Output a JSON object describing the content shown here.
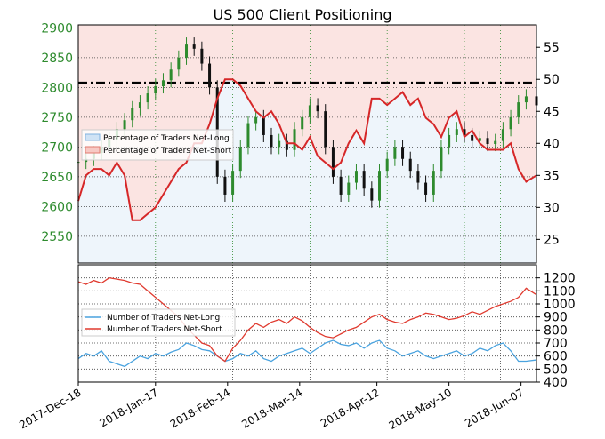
{
  "chart_data": [
    {
      "type": "line",
      "panel": "price-and-percentage",
      "title": "US 500 Client Positioning",
      "price_axis": {
        "ylim": [
          2505,
          2905
        ],
        "ticks": [
          2550,
          2600,
          2650,
          2700,
          2750,
          2800,
          2850,
          2900
        ],
        "color": "#2e8b2e"
      },
      "percent_axis": {
        "ylim": [
          21.3,
          58.5
        ],
        "ticks": [
          25,
          30,
          35,
          40,
          45,
          50,
          55
        ]
      },
      "reference_line": {
        "value": 2808,
        "style": "dash-dot"
      },
      "grid": true,
      "legend": {
        "placement": "center-left",
        "entries": [
          "Percentage of Traders Net-Long",
          "Percentage of Traders Net-Short"
        ]
      },
      "series": [
        {
          "name": "Percentage of Traders Net-Short",
          "color": "#d62728",
          "x": [
            0,
            3,
            6,
            9,
            12,
            15,
            18,
            21,
            24,
            27,
            30,
            33,
            36,
            39,
            42,
            45,
            48,
            51,
            54,
            57,
            60,
            63,
            66,
            69,
            72,
            75,
            78,
            81,
            84,
            87,
            90,
            93,
            96,
            99,
            102,
            105,
            108,
            111,
            114,
            117,
            120,
            123,
            126,
            129,
            132,
            135,
            138,
            141,
            144,
            147,
            150,
            153,
            156,
            159,
            162,
            165,
            168,
            171,
            174,
            178
          ],
          "values": [
            31,
            35,
            36,
            36,
            35,
            37,
            35,
            28,
            28,
            29,
            30,
            32,
            34,
            36,
            37,
            40,
            40,
            43,
            47,
            50,
            50,
            49,
            47,
            45,
            44,
            45,
            43,
            40,
            40,
            39,
            41,
            38,
            37,
            36,
            37,
            40,
            42,
            40,
            47,
            47,
            46,
            47,
            48,
            46,
            47,
            44,
            43,
            41,
            44,
            45,
            41,
            42,
            40,
            39,
            39,
            39,
            40,
            36,
            34,
            35
          ]
        },
        {
          "name": "Percentage of Traders Net-Long",
          "values_note": "100 minus net-short",
          "color": "#aecde8"
        },
        {
          "name": "US 500 price",
          "color": "#2e8b2e",
          "x": [
            0,
            3,
            6,
            9,
            12,
            15,
            18,
            21,
            24,
            27,
            30,
            33,
            36,
            39,
            42,
            45,
            48,
            51,
            54,
            57,
            60,
            63,
            66,
            69,
            72,
            75,
            78,
            81,
            84,
            87,
            90,
            93,
            96,
            99,
            102,
            105,
            108,
            111,
            114,
            117,
            120,
            123,
            126,
            129,
            132,
            135,
            138,
            141,
            144,
            147,
            150,
            153,
            156,
            159,
            162,
            165,
            168,
            171,
            174,
            178
          ],
          "values": [
            2675,
            2680,
            2690,
            2700,
            2713,
            2730,
            2745,
            2765,
            2775,
            2790,
            2802,
            2812,
            2830,
            2850,
            2872,
            2865,
            2840,
            2800,
            2650,
            2620,
            2660,
            2700,
            2740,
            2750,
            2720,
            2700,
            2710,
            2695,
            2730,
            2750,
            2770,
            2760,
            2700,
            2650,
            2620,
            2640,
            2660,
            2630,
            2610,
            2660,
            2680,
            2700,
            2680,
            2660,
            2640,
            2620,
            2660,
            2700,
            2720,
            2730,
            2720,
            2710,
            2715,
            2705,
            2710,
            2730,
            2750,
            2775,
            2785,
            2770
          ]
        }
      ]
    },
    {
      "type": "line",
      "panel": "trader-counts",
      "xlabel": "",
      "ylim": [
        400,
        1300
      ],
      "ticks": [
        400,
        500,
        600,
        700,
        800,
        900,
        1000,
        1100,
        1200
      ],
      "grid": true,
      "legend": {
        "placement": "center-left",
        "entries": [
          "Number of Traders Net-Long",
          "Number of Traders Net-Short"
        ]
      },
      "x_tick_labels": [
        "2017-Dec-18",
        "2018-Jan-17",
        "2018-Feb-14",
        "2018-Mar-14",
        "2018-Apr-12",
        "2018-May-10",
        "2018-Jun-07"
      ],
      "series": [
        {
          "name": "Number of Traders Net-Long",
          "color": "#4aa3df",
          "x": [
            0,
            3,
            6,
            9,
            12,
            15,
            18,
            21,
            24,
            27,
            30,
            33,
            36,
            39,
            42,
            45,
            48,
            51,
            54,
            57,
            60,
            63,
            66,
            69,
            72,
            75,
            78,
            81,
            84,
            87,
            90,
            93,
            96,
            99,
            102,
            105,
            108,
            111,
            114,
            117,
            120,
            123,
            126,
            129,
            132,
            135,
            138,
            141,
            144,
            147,
            150,
            153,
            156,
            159,
            162,
            165,
            168,
            171,
            174,
            178
          ],
          "values": [
            580,
            620,
            600,
            640,
            560,
            540,
            520,
            560,
            600,
            580,
            620,
            600,
            630,
            650,
            700,
            680,
            650,
            640,
            600,
            560,
            580,
            620,
            600,
            640,
            580,
            560,
            600,
            620,
            640,
            660,
            620,
            660,
            700,
            720,
            690,
            680,
            700,
            660,
            700,
            720,
            660,
            640,
            600,
            620,
            640,
            600,
            580,
            600,
            620,
            640,
            600,
            620,
            660,
            640,
            680,
            700,
            640,
            560,
            560,
            570
          ]
        },
        {
          "name": "Number of Traders Net-Short",
          "color": "#e03a2f",
          "x": [
            0,
            3,
            6,
            9,
            12,
            15,
            18,
            21,
            24,
            27,
            30,
            33,
            36,
            39,
            42,
            45,
            48,
            51,
            54,
            57,
            60,
            63,
            66,
            69,
            72,
            75,
            78,
            81,
            84,
            87,
            90,
            93,
            96,
            99,
            102,
            105,
            108,
            111,
            114,
            117,
            120,
            123,
            126,
            129,
            132,
            135,
            138,
            141,
            144,
            147,
            150,
            153,
            156,
            159,
            162,
            165,
            168,
            171,
            174,
            178
          ],
          "values": [
            1170,
            1150,
            1180,
            1160,
            1200,
            1190,
            1180,
            1160,
            1150,
            1100,
            1050,
            1000,
            950,
            900,
            820,
            760,
            700,
            680,
            600,
            560,
            660,
            720,
            800,
            850,
            820,
            860,
            880,
            850,
            900,
            870,
            820,
            780,
            750,
            740,
            770,
            800,
            820,
            860,
            900,
            920,
            880,
            860,
            850,
            880,
            900,
            930,
            920,
            900,
            880,
            890,
            910,
            940,
            920,
            950,
            980,
            1000,
            1020,
            1050,
            1120,
            1070
          ]
        }
      ]
    }
  ]
}
